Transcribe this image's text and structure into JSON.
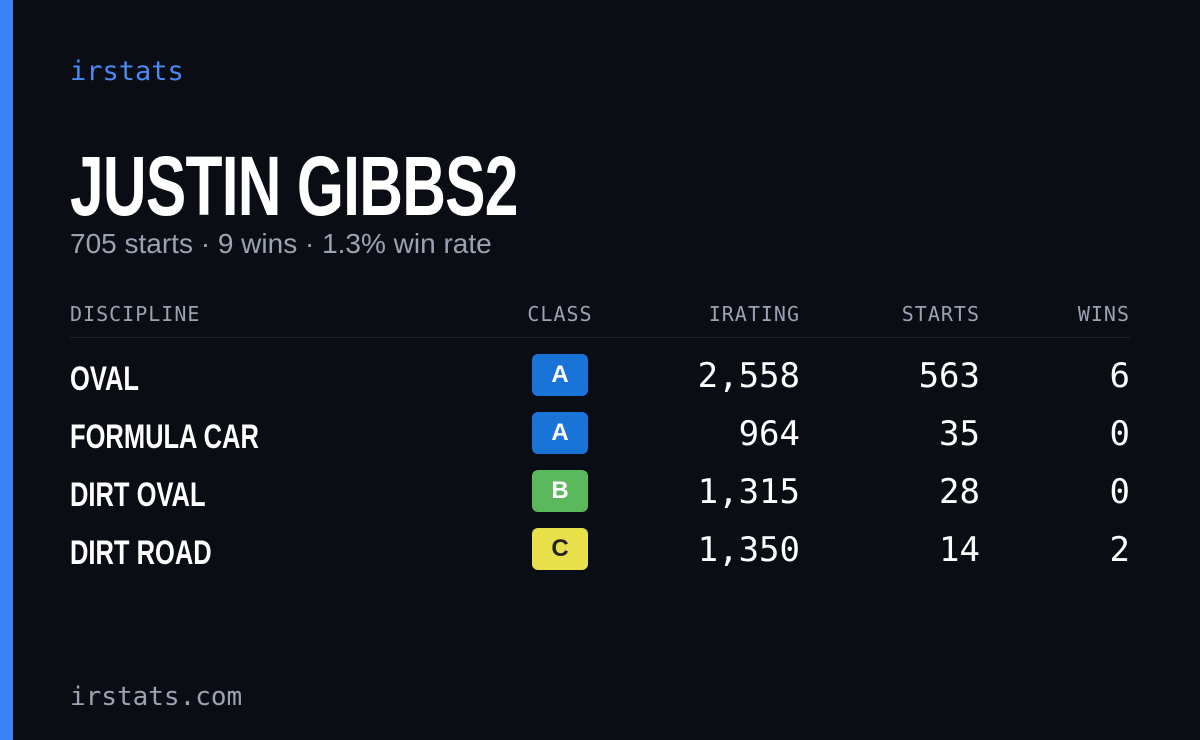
{
  "brand": "irstats",
  "name": "JUSTIN GIBBS2",
  "summary": "705 starts · 9 wins · 1.3% win rate",
  "table": {
    "columns": [
      "DISCIPLINE",
      "CLASS",
      "IRATING",
      "STARTS",
      "WINS"
    ],
    "rows": [
      {
        "discipline": "OVAL",
        "class": "A",
        "badge_color": "#1a74d8",
        "irating": "2,558",
        "starts": "563",
        "wins": "6"
      },
      {
        "discipline": "FORMULA CAR",
        "class": "A",
        "badge_color": "#1a74d8",
        "irating": "964",
        "starts": "35",
        "wins": "0"
      },
      {
        "discipline": "DIRT OVAL",
        "class": "B",
        "badge_color": "#5cb85c",
        "irating": "1,315",
        "starts": "28",
        "wins": "0"
      },
      {
        "discipline": "DIRT ROAD",
        "class": "C",
        "badge_color": "#e8e04a",
        "irating": "1,350",
        "starts": "14",
        "wins": "2"
      }
    ]
  },
  "footer": "irstats.com"
}
